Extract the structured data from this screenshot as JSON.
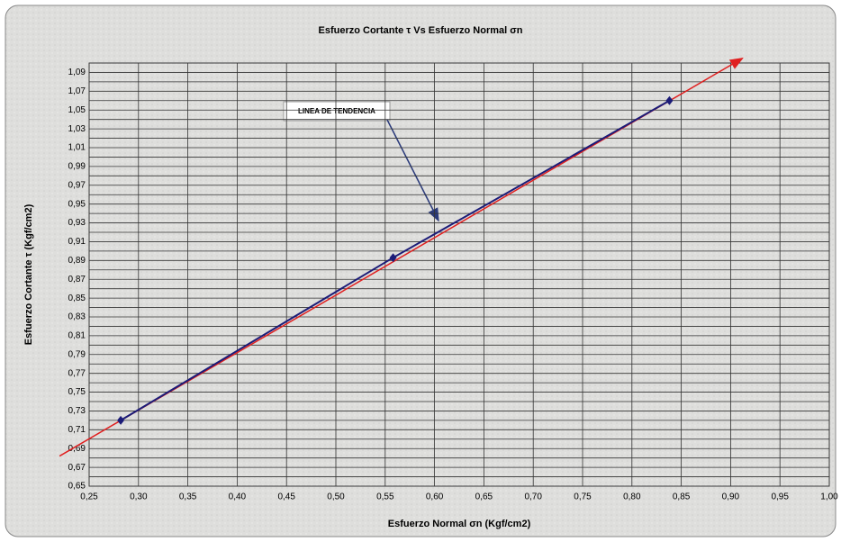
{
  "chart_data": {
    "type": "line",
    "title": "Esfuerzo Cortante τ Vs Esfuerzo Normal σn",
    "x_label": "Esfuerzo Normal σn (Kgf/cm2)",
    "y_label": "Esfuerzo Cortante τ (Kgf/cm2)",
    "annotation": "LINEA DE TENDENCIA",
    "x": [
      0.282,
      0.558,
      0.838
    ],
    "series": [
      {
        "name": "Esfuerzo Cortante",
        "color": "#1c1c78",
        "values": [
          0.72,
          0.893,
          1.06
        ]
      }
    ],
    "trendline": {
      "x": [
        0.22,
        0.912
      ],
      "y": [
        0.682,
        1.105
      ],
      "color": "#e02020"
    },
    "xlim": [
      0.25,
      1.0
    ],
    "ylim": [
      0.65,
      1.1
    ],
    "xticks": [
      {
        "value": 0.25,
        "label": "0,25"
      },
      {
        "value": 0.3,
        "label": "0,30"
      },
      {
        "value": 0.35,
        "label": "0,35"
      },
      {
        "value": 0.4,
        "label": "0,40"
      },
      {
        "value": 0.45,
        "label": "0,45"
      },
      {
        "value": 0.5,
        "label": "0,50"
      },
      {
        "value": 0.55,
        "label": "0,55"
      },
      {
        "value": 0.6,
        "label": "0,60"
      },
      {
        "value": 0.65,
        "label": "0,65"
      },
      {
        "value": 0.7,
        "label": "0,70"
      },
      {
        "value": 0.75,
        "label": "0,75"
      },
      {
        "value": 0.8,
        "label": "0,80"
      },
      {
        "value": 0.85,
        "label": "0,85"
      },
      {
        "value": 0.9,
        "label": "0,90"
      },
      {
        "value": 0.95,
        "label": "0,95"
      },
      {
        "value": 1.0,
        "label": "1,00"
      }
    ],
    "yticks": [
      {
        "value": 0.65,
        "label": "0,65"
      },
      {
        "value": 0.67,
        "label": "0,67"
      },
      {
        "value": 0.69,
        "label": "0,69"
      },
      {
        "value": 0.71,
        "label": "0,71"
      },
      {
        "value": 0.73,
        "label": "0,73"
      },
      {
        "value": 0.75,
        "label": "0,75"
      },
      {
        "value": 0.77,
        "label": "0,77"
      },
      {
        "value": 0.79,
        "label": "0,79"
      },
      {
        "value": 0.81,
        "label": "0,81"
      },
      {
        "value": 0.83,
        "label": "0,83"
      },
      {
        "value": 0.85,
        "label": "0,85"
      },
      {
        "value": 0.87,
        "label": "0,87"
      },
      {
        "value": 0.89,
        "label": "0,89"
      },
      {
        "value": 0.91,
        "label": "0,91"
      },
      {
        "value": 0.93,
        "label": "0,93"
      },
      {
        "value": 0.95,
        "label": "0,95"
      },
      {
        "value": 0.97,
        "label": "0,97"
      },
      {
        "value": 0.99,
        "label": "0,99"
      },
      {
        "value": 1.01,
        "label": "1,01"
      },
      {
        "value": 1.03,
        "label": "1,03"
      },
      {
        "value": 1.05,
        "label": "1,05"
      },
      {
        "value": 1.07,
        "label": "1,07"
      },
      {
        "value": 1.09,
        "label": "1,09"
      }
    ],
    "y_minor_ticks": [
      0.66,
      0.68,
      0.7,
      0.72,
      0.74,
      0.76,
      0.78,
      0.8,
      0.82,
      0.84,
      0.86,
      0.88,
      0.9,
      0.92,
      0.94,
      0.96,
      0.98,
      1.0,
      1.02,
      1.04,
      1.06,
      1.08,
      1.1
    ],
    "grid": true
  }
}
